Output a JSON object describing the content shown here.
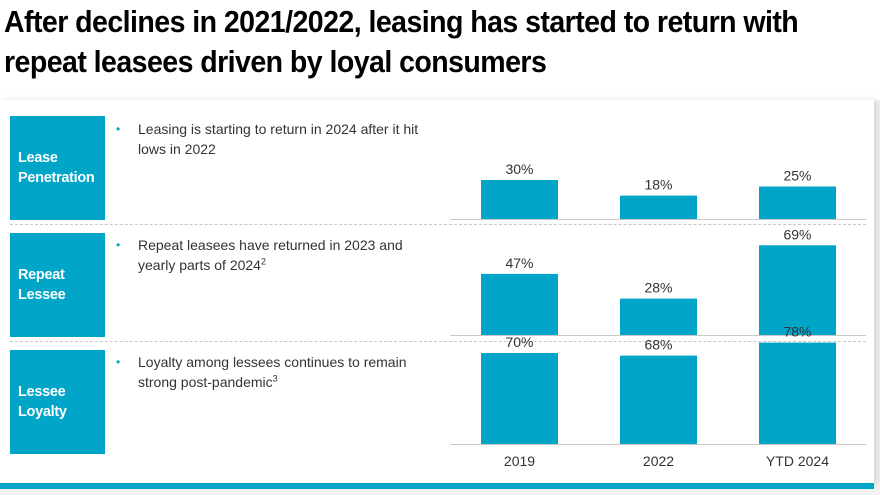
{
  "title": {
    "line1": "After declines in 2021/2022, leasing has started to return with",
    "line2": "repeat leasees driven by loyal consumers"
  },
  "colors": {
    "accent": "#00a5c8",
    "text": "#333333",
    "title": "#000000"
  },
  "rows": [
    {
      "label_line1": "Lease",
      "label_line2": "Penetration",
      "bullet": "Leasing is starting to return in 2024 after it hit lows in 2022",
      "footnote": ""
    },
    {
      "label_line1": "Repeat",
      "label_line2": "Lessee",
      "bullet": "Repeat leasees have returned in 2023 and yearly parts of 2024",
      "footnote": "2"
    },
    {
      "label_line1": "Lessee",
      "label_line2": "Loyalty",
      "bullet": "Loyalty among lessees continues to remain strong post-pandemic",
      "footnote": "3"
    }
  ],
  "bullet_icon": "bullet-dot-icon",
  "chart_data": [
    {
      "type": "bar",
      "title": "Lease Penetration",
      "categories": [
        "2019",
        "2022",
        "YTD 2024"
      ],
      "values": [
        30,
        18,
        25
      ],
      "labels": [
        "30%",
        "18%",
        "25%"
      ],
      "xlabel": "",
      "ylabel": "",
      "ylim": [
        0,
        100
      ],
      "grid": false,
      "legend": "none"
    },
    {
      "type": "bar",
      "title": "Repeat Lessee",
      "categories": [
        "2019",
        "2022",
        "YTD 2024"
      ],
      "values": [
        47,
        28,
        69
      ],
      "labels": [
        "47%",
        "28%",
        "69%"
      ],
      "xlabel": "",
      "ylabel": "",
      "ylim": [
        0,
        100
      ],
      "grid": false,
      "legend": "none"
    },
    {
      "type": "bar",
      "title": "Lessee Loyalty",
      "categories": [
        "2019",
        "2022",
        "YTD 2024"
      ],
      "values": [
        70,
        68,
        78
      ],
      "labels": [
        "70%",
        "68%",
        "78%"
      ],
      "xlabel": "",
      "ylabel": "",
      "ylim": [
        0,
        100
      ],
      "grid": false,
      "legend": "none"
    }
  ]
}
